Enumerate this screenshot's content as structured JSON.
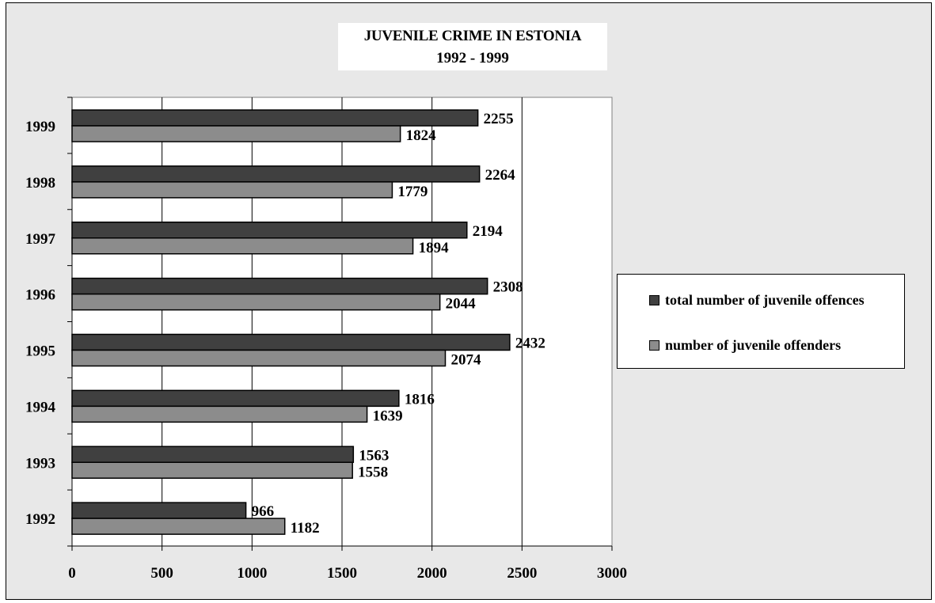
{
  "chart_data": {
    "type": "bar",
    "orientation": "horizontal",
    "title": "JUVENILE CRIME IN ESTONIA",
    "subtitle": "1992 - 1999",
    "categories": [
      "1999",
      "1998",
      "1997",
      "1996",
      "1995",
      "1994",
      "1993",
      "1992"
    ],
    "series": [
      {
        "name": "total number of juvenile offences",
        "color": "#404040",
        "values": [
          2255,
          2264,
          2194,
          2308,
          2432,
          1816,
          1563,
          966
        ]
      },
      {
        "name": "number of juvenile offenders",
        "color": "#8c8c8c",
        "values": [
          1824,
          1779,
          1894,
          2044,
          2074,
          1639,
          1558,
          1182
        ]
      }
    ],
    "xlim": [
      0,
      3000
    ],
    "xticks": [
      "0",
      "500",
      "1000",
      "1500",
      "2000",
      "2500",
      "3000"
    ],
    "xtick_values": [
      0,
      500,
      1000,
      1500,
      2000,
      2500,
      3000
    ],
    "grid": "vertical",
    "legend_position": "right",
    "plot_background": "#ffffff",
    "chart_background": "#e8e8e8"
  }
}
